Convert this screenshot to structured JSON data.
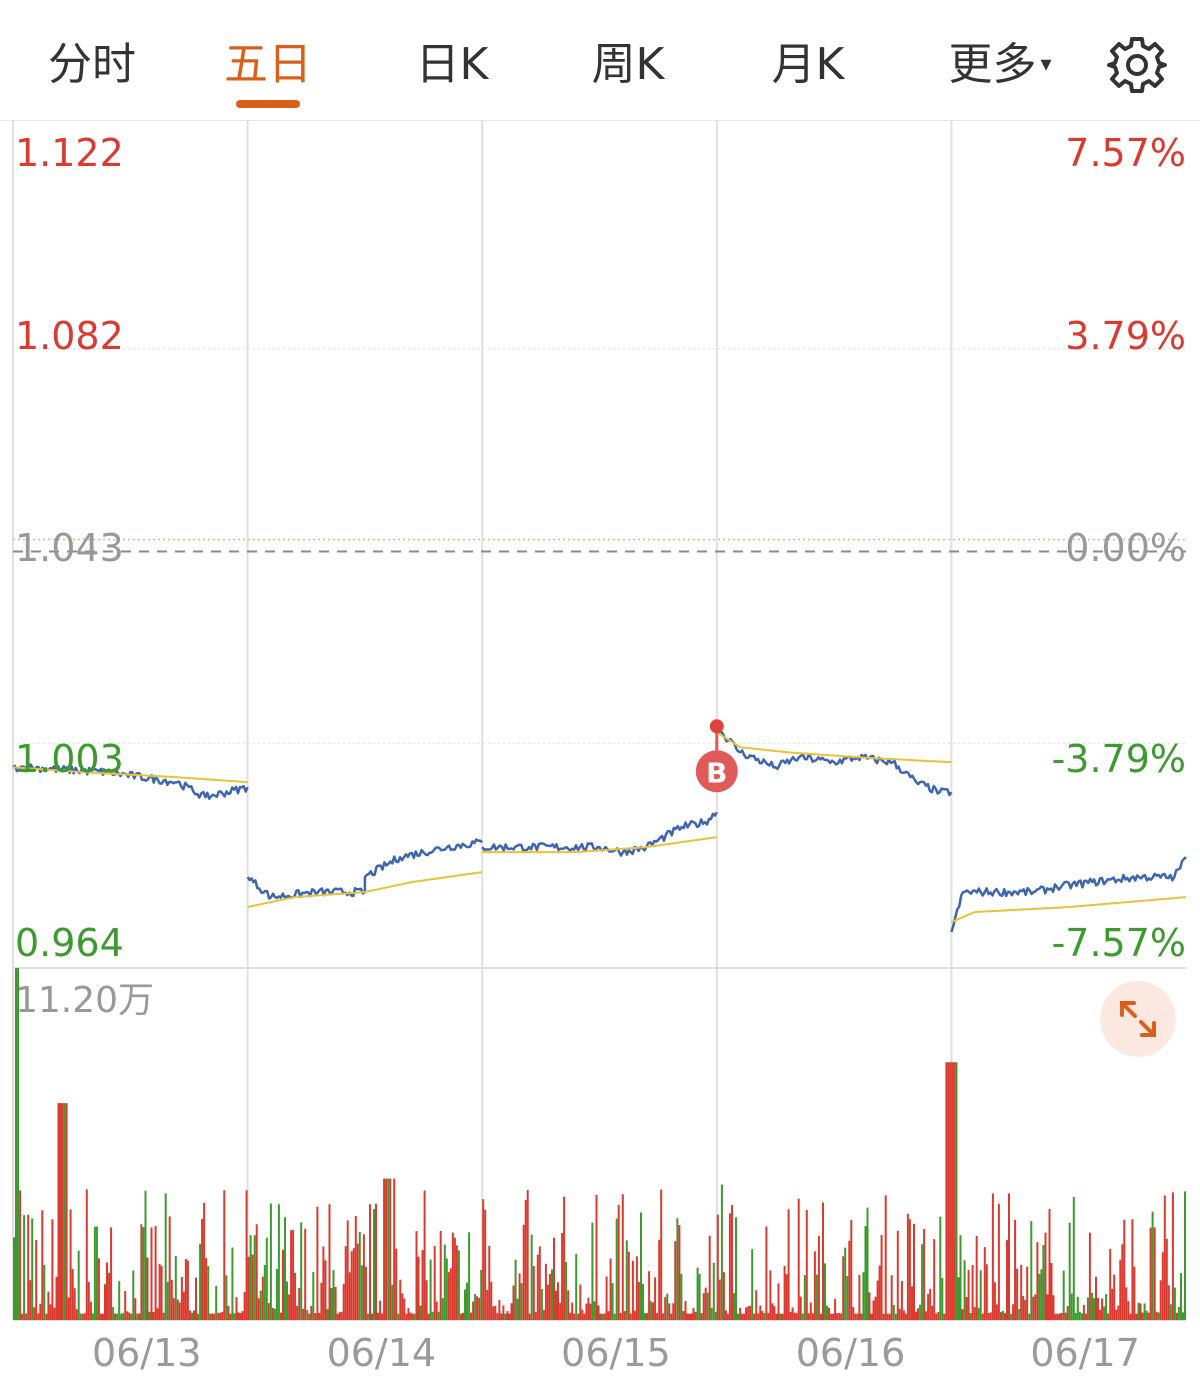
{
  "tabs": [
    {
      "label": "分时",
      "active": false
    },
    {
      "label": "五日",
      "active": true
    },
    {
      "label": "日K",
      "active": false
    },
    {
      "label": "周K",
      "active": false
    },
    {
      "label": "月K",
      "active": false
    },
    {
      "label": "更多",
      "active": false
    }
  ],
  "more_caret": "▾",
  "settings_icon": "gear-icon",
  "colors": {
    "up": "#d93b30",
    "down": "#3c9a2e",
    "flat": "#999999",
    "price_line": "#3d65b0",
    "avg_line": "#e8c23a",
    "accent": "#d9601a"
  },
  "chart_data": {
    "type": "line",
    "title": "",
    "ylim": [
      0.964,
      1.122
    ],
    "prev_close": 1.043,
    "y_tick_labels_left": [
      "1.122",
      "1.082",
      "1.043",
      "1.003",
      "0.964"
    ],
    "y_tick_labels_right": [
      "7.57%",
      "3.79%",
      "0.00%",
      "-3.79%",
      "-7.57%"
    ],
    "days": [
      "06/13",
      "06/14",
      "06/15",
      "06/16",
      "06/17"
    ],
    "series": [
      {
        "key": "price",
        "anchors": [
          [
            0.0,
            0.999
          ],
          [
            0.05,
            0.999
          ],
          [
            0.4,
            0.998
          ],
          [
            0.7,
            0.996
          ],
          [
            0.82,
            0.993
          ],
          [
            1.0,
            0.995
          ],
          [
            1.0,
            0.977
          ],
          [
            1.1,
            0.973
          ],
          [
            1.3,
            0.974
          ],
          [
            1.5,
            0.974
          ],
          [
            1.5,
            0.977
          ],
          [
            1.65,
            0.981
          ],
          [
            1.85,
            0.983
          ],
          [
            2.0,
            0.984
          ],
          [
            2.0,
            0.983
          ],
          [
            2.2,
            0.983
          ],
          [
            2.5,
            0.983
          ],
          [
            2.6,
            0.982
          ],
          [
            2.7,
            0.983
          ],
          [
            2.85,
            0.987
          ],
          [
            2.95,
            0.988
          ],
          [
            3.0,
            0.99
          ],
          [
            3.0,
            1.007
          ],
          [
            3.1,
            1.002
          ],
          [
            3.25,
            0.999
          ],
          [
            3.35,
            1.001
          ],
          [
            3.5,
            1.0
          ],
          [
            3.6,
            1.001
          ],
          [
            3.75,
            1.0
          ],
          [
            3.85,
            0.996
          ],
          [
            3.95,
            0.994
          ],
          [
            4.0,
            0.994
          ],
          [
            4.0,
            0.966
          ],
          [
            4.05,
            0.974
          ],
          [
            4.2,
            0.974
          ],
          [
            4.35,
            0.974
          ],
          [
            4.45,
            0.975
          ],
          [
            4.6,
            0.976
          ],
          [
            4.8,
            0.977
          ],
          [
            4.95,
            0.977
          ],
          [
            5.0,
            0.981
          ]
        ]
      },
      {
        "key": "avg",
        "anchors": [
          [
            0.0,
            0.999
          ],
          [
            0.3,
            0.998
          ],
          [
            0.7,
            0.997
          ],
          [
            1.0,
            0.996
          ],
          [
            1.0,
            0.971
          ],
          [
            1.2,
            0.973
          ],
          [
            1.5,
            0.974
          ],
          [
            1.7,
            0.976
          ],
          [
            2.0,
            0.978
          ],
          [
            2.0,
            0.982
          ],
          [
            2.4,
            0.982
          ],
          [
            2.7,
            0.983
          ],
          [
            2.85,
            0.984
          ],
          [
            3.0,
            0.985
          ],
          [
            3.0,
            1.006
          ],
          [
            3.1,
            1.003
          ],
          [
            3.3,
            1.002
          ],
          [
            3.6,
            1.001
          ],
          [
            4.0,
            1.0
          ],
          [
            4.0,
            0.968
          ],
          [
            4.1,
            0.97
          ],
          [
            4.5,
            0.971
          ],
          [
            5.0,
            0.973
          ]
        ]
      }
    ],
    "trade_marker": {
      "label": "B",
      "day_pos": 3.0,
      "price": 1.007
    },
    "volume": {
      "max_label": "11.20万",
      "max_value": 112000
    }
  }
}
